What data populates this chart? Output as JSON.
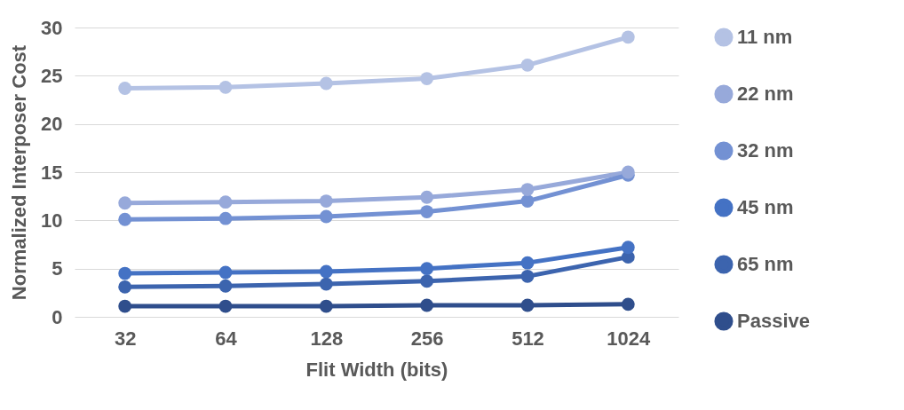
{
  "chart_data": {
    "type": "line",
    "xlabel": "Flit Width (bits)",
    "ylabel": "Normalized Interposer Cost",
    "categories": [
      "32",
      "64",
      "128",
      "256",
      "512",
      "1024"
    ],
    "series": [
      {
        "name": "11 nm",
        "color": "#b4c2e4",
        "values": [
          23.7,
          23.8,
          24.2,
          24.7,
          26.1,
          29.0
        ]
      },
      {
        "name": "22 nm",
        "color": "#97a9da",
        "values": [
          11.8,
          11.9,
          12.0,
          12.4,
          13.2,
          15.0
        ]
      },
      {
        "name": "32 nm",
        "color": "#7391d3",
        "values": [
          10.1,
          10.2,
          10.4,
          10.9,
          12.0,
          14.7
        ]
      },
      {
        "name": "45 nm",
        "color": "#4472c4",
        "values": [
          4.5,
          4.6,
          4.7,
          5.0,
          5.6,
          7.2
        ]
      },
      {
        "name": "65 nm",
        "color": "#3c64ae",
        "values": [
          3.1,
          3.2,
          3.4,
          3.7,
          4.2,
          6.2
        ]
      },
      {
        "name": "Passive",
        "color": "#2f4e8c",
        "values": [
          1.1,
          1.1,
          1.1,
          1.2,
          1.2,
          1.3
        ]
      }
    ],
    "ylim": [
      0,
      30
    ],
    "yticks": [
      0,
      5,
      10,
      15,
      20,
      25,
      30
    ],
    "grid": "y",
    "legend": "right",
    "marker": "circle",
    "line_style": "solid"
  }
}
